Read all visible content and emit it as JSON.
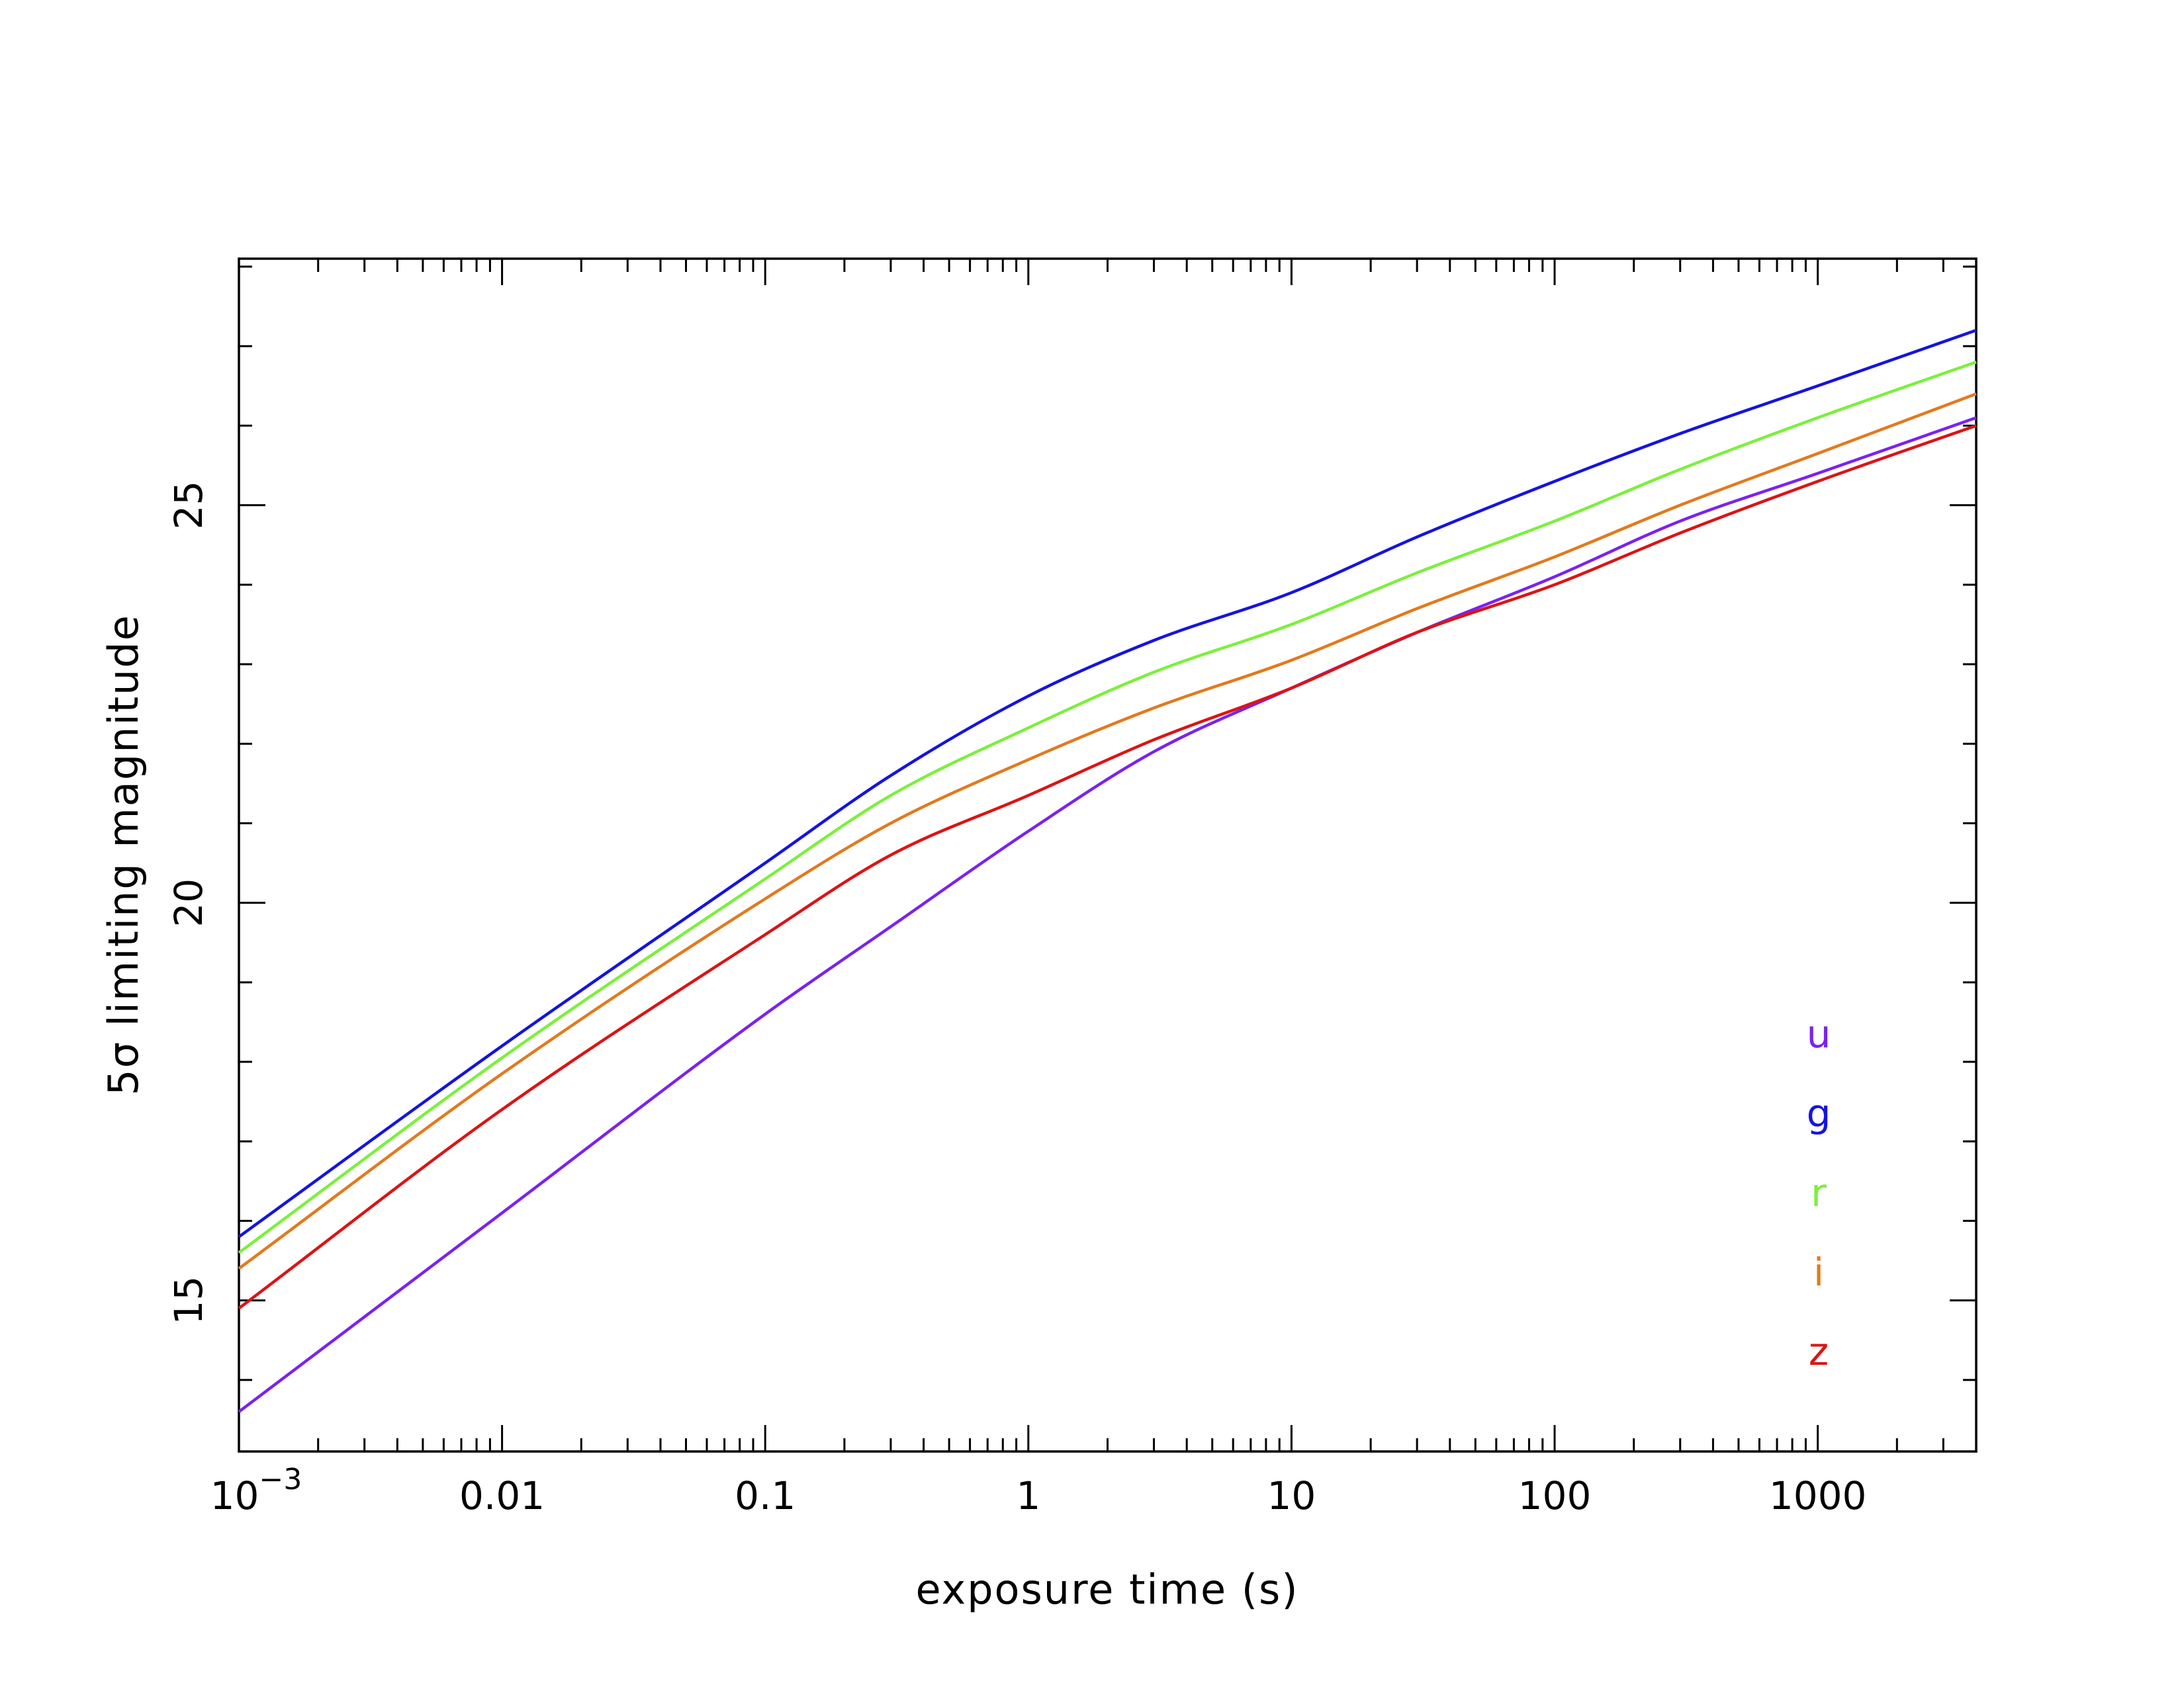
{
  "chart_data": {
    "type": "line",
    "title": "",
    "xlabel": "exposure time (s)",
    "ylabel": "5σ limiting magnitude",
    "x_scale": "log",
    "xlim": [
      0.001,
      4000
    ],
    "ylim": [
      13.1,
      28.1
    ],
    "grid": false,
    "legend_position": "bottom-right",
    "x_ticks": [
      {
        "value": 0.001,
        "base": "10",
        "exp": "−3"
      },
      {
        "value": 0.01,
        "label": "0.01"
      },
      {
        "value": 0.1,
        "label": "0.1"
      },
      {
        "value": 1,
        "label": "1"
      },
      {
        "value": 10,
        "label": "10"
      },
      {
        "value": 100,
        "label": "100"
      },
      {
        "value": 1000,
        "label": "1000"
      }
    ],
    "y_ticks": [
      {
        "value": 15,
        "label": "15"
      },
      {
        "value": 20,
        "label": "20"
      },
      {
        "value": 25,
        "label": "25"
      }
    ],
    "y_minor_step": 1,
    "series": [
      {
        "name": "u",
        "color": "#7b22f0",
        "x": [
          0.001,
          0.01,
          0.1,
          0.3,
          1,
          3,
          10,
          30,
          100,
          300,
          1000,
          4000
        ],
        "y": [
          13.6,
          16.1,
          18.6,
          19.7,
          20.9,
          21.9,
          22.7,
          23.4,
          24.1,
          24.8,
          25.4,
          26.1
        ]
      },
      {
        "name": "g",
        "color": "#1414e0",
        "x": [
          0.001,
          0.01,
          0.1,
          0.3,
          1,
          3,
          10,
          30,
          100,
          300,
          1000,
          4000
        ],
        "y": [
          15.8,
          18.2,
          20.5,
          21.6,
          22.6,
          23.3,
          23.9,
          24.6,
          25.3,
          25.9,
          26.5,
          27.2
        ]
      },
      {
        "name": "r",
        "color": "#7cf03c",
        "x": [
          0.001,
          0.01,
          0.1,
          0.3,
          1,
          3,
          10,
          30,
          100,
          300,
          1000,
          4000
        ],
        "y": [
          15.6,
          18.05,
          20.3,
          21.35,
          22.2,
          22.9,
          23.5,
          24.15,
          24.8,
          25.45,
          26.1,
          26.8
        ]
      },
      {
        "name": "i",
        "color": "#e27a1e",
        "x": [
          0.001,
          0.01,
          0.1,
          0.3,
          1,
          3,
          10,
          30,
          100,
          300,
          1000,
          4000
        ],
        "y": [
          15.4,
          17.85,
          20.05,
          21.0,
          21.8,
          22.45,
          23.05,
          23.7,
          24.35,
          25.0,
          25.65,
          26.4
        ]
      },
      {
        "name": "z",
        "color": "#dc1414",
        "x": [
          0.001,
          0.01,
          0.1,
          0.3,
          1,
          3,
          10,
          30,
          100,
          300,
          1000,
          4000
        ],
        "y": [
          14.9,
          17.4,
          19.6,
          20.6,
          21.35,
          22.05,
          22.7,
          23.4,
          24.0,
          24.65,
          25.3,
          26.0
        ]
      }
    ]
  }
}
